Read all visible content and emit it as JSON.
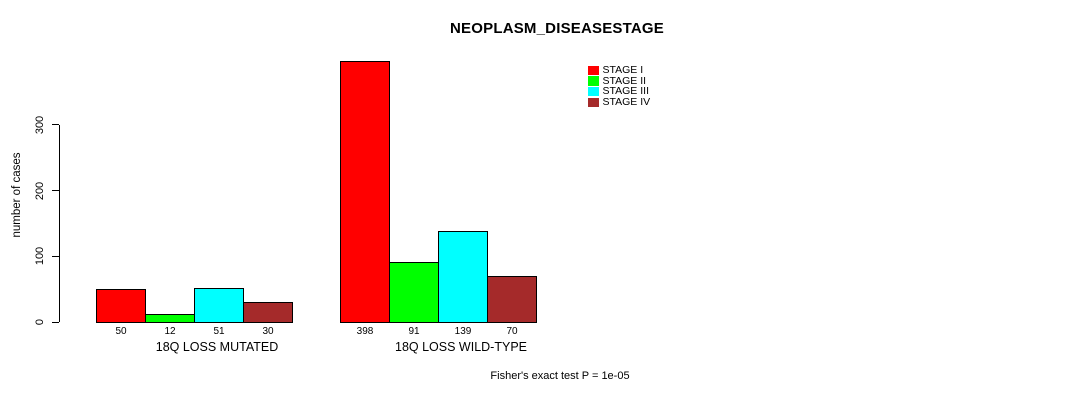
{
  "title": "NEOPLASM_DISEASESTAGE",
  "footnote": "Fisher's exact test P = 1e-05",
  "chart_data": {
    "type": "bar",
    "title": "NEOPLASM_DISEASESTAGE",
    "xlabel": "",
    "ylabel": "number of cases",
    "ylim": [
      0,
      398
    ],
    "yticks": [
      0,
      100,
      200,
      300
    ],
    "grid": false,
    "legend_position": "top-right",
    "bar_border_color": "#000000",
    "categories": [
      "18Q LOSS MUTATED",
      "18Q LOSS WILD-TYPE"
    ],
    "series": [
      {
        "name": "STAGE I",
        "color": "#ff0000",
        "values": [
          50,
          398
        ]
      },
      {
        "name": "STAGE II",
        "color": "#00ff00",
        "values": [
          12,
          91
        ]
      },
      {
        "name": "STAGE III",
        "color": "#00ffff",
        "values": [
          51,
          139
        ]
      },
      {
        "name": "STAGE IV",
        "color": "#a52a2a",
        "values": [
          30,
          70
        ]
      }
    ],
    "bar_value_labels": [
      [
        50,
        12,
        51,
        30
      ],
      [
        398,
        91,
        139,
        70
      ]
    ],
    "annotation": "Fisher's exact test P = 1e-05"
  }
}
